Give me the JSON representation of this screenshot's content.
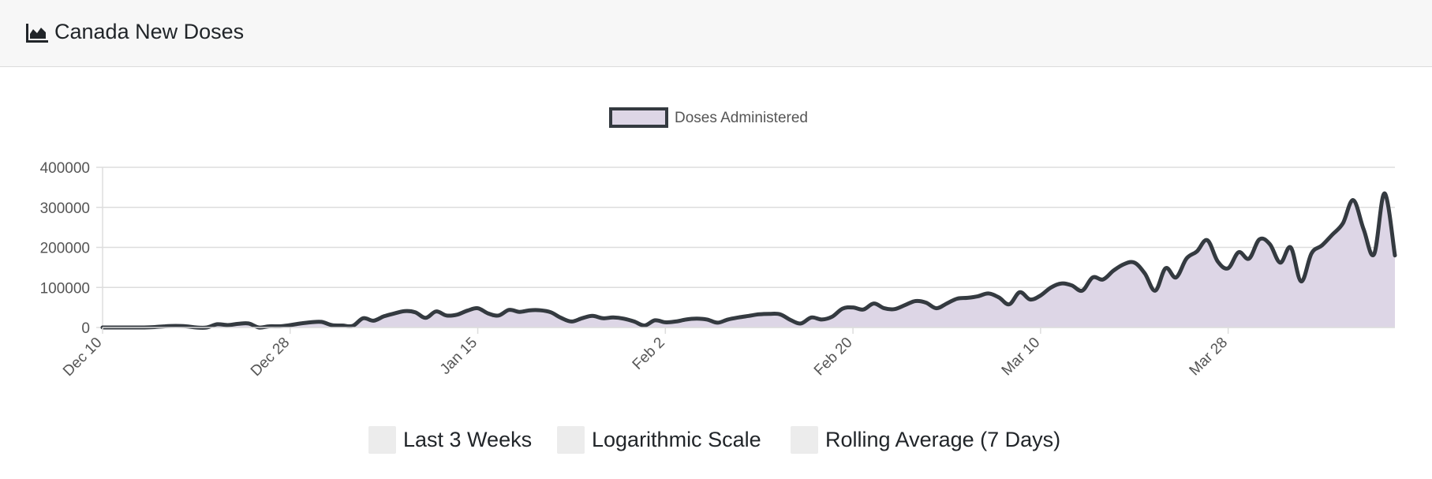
{
  "header": {
    "icon": "area-chart-icon",
    "title": "Canada New Doses"
  },
  "controls": [
    {
      "name": "last-3-weeks",
      "label": "Last 3 Weeks",
      "checked": false
    },
    {
      "name": "logarithmic-scale",
      "label": "Logarithmic Scale",
      "checked": false
    },
    {
      "name": "rolling-average",
      "label": "Rolling Average (7 Days)",
      "checked": false
    }
  ],
  "colors": {
    "line": "#343a40",
    "fill": "#ddd6e6",
    "grid": "#dddddd",
    "checkbox": "#ececec",
    "header_bg": "#f7f7f7"
  },
  "chart_data": {
    "type": "area",
    "title": "",
    "xlabel": "",
    "ylabel": "",
    "ylim": [
      0,
      400000
    ],
    "yticks": [
      0,
      100000,
      200000,
      300000,
      400000
    ],
    "ytick_labels": [
      "0",
      "100000",
      "200000",
      "300000",
      "400000"
    ],
    "xtick_labels": [
      "Dec 10",
      "Dec 28",
      "Jan 15",
      "Feb 2",
      "Feb 20",
      "Mar 10",
      "Mar 28"
    ],
    "grid": true,
    "legend": {
      "position": "top",
      "entries": [
        "Doses Administered"
      ]
    },
    "series": [
      {
        "name": "Doses Administered",
        "start_date": "2020-12-10",
        "values": [
          0,
          0,
          0,
          0,
          0,
          1000,
          3000,
          4000,
          3000,
          0,
          0,
          8000,
          6000,
          9000,
          10000,
          0,
          3000,
          3000,
          6000,
          10000,
          13000,
          14000,
          6000,
          5000,
          4000,
          23000,
          17000,
          28000,
          35000,
          41000,
          38000,
          24000,
          40000,
          30000,
          32000,
          42000,
          48000,
          35000,
          30000,
          44000,
          39000,
          43000,
          43000,
          38000,
          24000,
          15000,
          23000,
          29000,
          23000,
          25000,
          22000,
          15000,
          5000,
          18000,
          13000,
          15000,
          20000,
          22000,
          20000,
          12000,
          20000,
          25000,
          29000,
          33000,
          34000,
          33000,
          19000,
          10000,
          25000,
          20000,
          27000,
          47000,
          50000,
          45000,
          60000,
          48000,
          46000,
          56000,
          66000,
          62000,
          48000,
          60000,
          72000,
          74000,
          78000,
          85000,
          75000,
          58000,
          88000,
          70000,
          80000,
          100000,
          110000,
          105000,
          92000,
          125000,
          120000,
          142000,
          158000,
          162000,
          135000,
          92000,
          148000,
          125000,
          172000,
          190000,
          218000,
          165000,
          148000,
          188000,
          172000,
          220000,
          208000,
          162000,
          200000,
          115000,
          185000,
          205000,
          232000,
          260000,
          318000,
          245000,
          183000,
          335000,
          180000
        ]
      }
    ]
  }
}
